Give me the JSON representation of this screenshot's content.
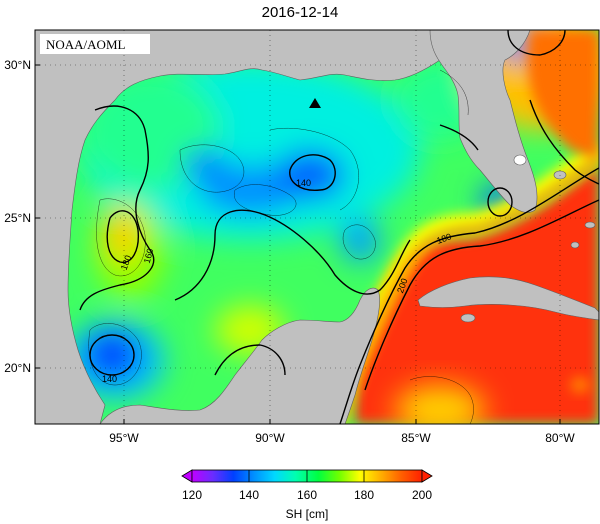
{
  "title": "2016-12-14",
  "credit": "NOAA/AOML",
  "x_ticks": [
    "95°W",
    "90°W",
    "85°W",
    "80°W"
  ],
  "y_ticks": [
    "30°N",
    "25°N",
    "20°N"
  ],
  "colorbar": {
    "label": "SH [cm]",
    "ticks": [
      "120",
      "140",
      "160",
      "180",
      "200"
    ],
    "min": 120,
    "max": 200,
    "colors": [
      "#c000ff",
      "#6a2cff",
      "#0040ff",
      "#0090ff",
      "#00d8ff",
      "#00ffb0",
      "#00ff40",
      "#70ff00",
      "#ffff00",
      "#ffb000",
      "#ff6000",
      "#ff2000"
    ]
  },
  "contour_labels": [
    "140",
    "180",
    "160",
    "180",
    "200",
    "140"
  ],
  "colors": {
    "land": "#c0c0c0",
    "ocean_low": "#0050ff",
    "ocean_high": "#ff2000"
  },
  "marker": "triangle"
}
